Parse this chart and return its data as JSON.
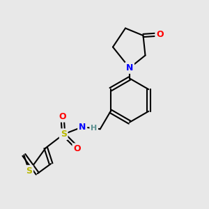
{
  "background_color": "#e8e8e8",
  "bond_color": "#000000",
  "atom_colors": {
    "N": "#0000ff",
    "O": "#ff0000",
    "S_thio": "#b8b800",
    "S_sulfo": "#b8b800",
    "H": "#5a9090",
    "C": "#000000"
  },
  "bond_width": 1.5,
  "font_size_atom": 9,
  "xlim": [
    0,
    10
  ],
  "ylim": [
    0,
    10
  ]
}
